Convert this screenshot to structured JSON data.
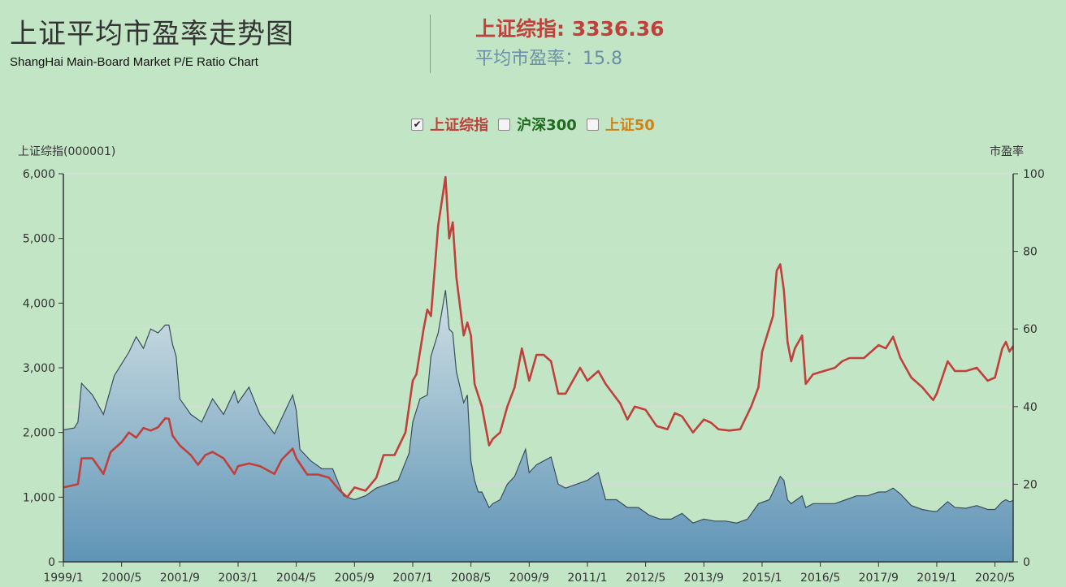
{
  "header": {
    "title": "上证平均市盈率走势图",
    "subtitle": "ShangHai Main-Board Market P/E Ratio Chart",
    "index_label": "上证综指: 3336.36",
    "pe_label": "平均市盈率：15.8"
  },
  "legend": {
    "items": [
      {
        "label": "上证综指",
        "checked": true,
        "color": "#c0403c"
      },
      {
        "label": "沪深300",
        "checked": false,
        "color": "#1f6b1f"
      },
      {
        "label": "上证50",
        "checked": false,
        "color": "#d08418"
      }
    ]
  },
  "colors": {
    "index_line": "#c0403c",
    "pe_area_top": "#d0e0e4",
    "pe_area_bottom": "#5f94b6",
    "pe_line": "#3a4e5a",
    "grid": "#d9d9d9"
  },
  "chart_data": {
    "type": "line",
    "yaxis_left_title": "上证综指(000001)",
    "yaxis_right_title": "市盈率",
    "y_left_range": [
      0,
      6000
    ],
    "y_right_range": [
      0,
      100
    ],
    "y_left_ticks": [
      "0",
      "1,000",
      "2,000",
      "3,000",
      "4,000",
      "5,000",
      "6,000"
    ],
    "y_right_ticks": [
      "0",
      "20",
      "40",
      "60",
      "80",
      "100"
    ],
    "x_range": [
      "1999/1",
      "2020/10"
    ],
    "x_ticks": [
      "1999/1",
      "2000/5",
      "2001/9",
      "2003/1",
      "2004/5",
      "2005/9",
      "2007/1",
      "2008/5",
      "2009/9",
      "2011/1",
      "2012/5",
      "2013/9",
      "2015/1",
      "2016/5",
      "2017/9",
      "2019/1",
      "2020/5"
    ],
    "series": [
      {
        "name": "上证综指",
        "axis": "left",
        "points": [
          [
            "1999/1",
            1150
          ],
          [
            "1999/5",
            1200
          ],
          [
            "1999/6",
            1600
          ],
          [
            "1999/9",
            1600
          ],
          [
            "1999/12",
            1360
          ],
          [
            "2000/2",
            1700
          ],
          [
            "2000/5",
            1850
          ],
          [
            "2000/7",
            2000
          ],
          [
            "2000/9",
            1920
          ],
          [
            "2000/11",
            2070
          ],
          [
            "2001/1",
            2030
          ],
          [
            "2001/3",
            2080
          ],
          [
            "2001/5",
            2220
          ],
          [
            "2001/6",
            2210
          ],
          [
            "2001/7",
            1950
          ],
          [
            "2001/9",
            1800
          ],
          [
            "2001/12",
            1650
          ],
          [
            "2002/2",
            1500
          ],
          [
            "2002/4",
            1650
          ],
          [
            "2002/6",
            1700
          ],
          [
            "2002/9",
            1600
          ],
          [
            "2002/12",
            1360
          ],
          [
            "2003/1",
            1480
          ],
          [
            "2003/4",
            1520
          ],
          [
            "2003/7",
            1480
          ],
          [
            "2003/11",
            1360
          ],
          [
            "2004/1",
            1580
          ],
          [
            "2004/4",
            1750
          ],
          [
            "2004/5",
            1600
          ],
          [
            "2004/8",
            1350
          ],
          [
            "2004/11",
            1350
          ],
          [
            "2005/2",
            1300
          ],
          [
            "2005/5",
            1100
          ],
          [
            "2005/7",
            1000
          ],
          [
            "2005/9",
            1150
          ],
          [
            "2005/12",
            1100
          ],
          [
            "2006/3",
            1300
          ],
          [
            "2006/5",
            1650
          ],
          [
            "2006/8",
            1650
          ],
          [
            "2006/11",
            2000
          ],
          [
            "2007/1",
            2800
          ],
          [
            "2007/2",
            2900
          ],
          [
            "2007/4",
            3600
          ],
          [
            "2007/5",
            3900
          ],
          [
            "2007/6",
            3800
          ],
          [
            "2007/8",
            5200
          ],
          [
            "2007/10",
            5950
          ],
          [
            "2007/11",
            5000
          ],
          [
            "2007/12",
            5250
          ],
          [
            "2008/1",
            4400
          ],
          [
            "2008/3",
            3500
          ],
          [
            "2008/4",
            3700
          ],
          [
            "2008/5",
            3500
          ],
          [
            "2008/6",
            2750
          ],
          [
            "2008/8",
            2400
          ],
          [
            "2008/10",
            1800
          ],
          [
            "2008/11",
            1900
          ],
          [
            "2009/1",
            2000
          ],
          [
            "2009/3",
            2400
          ],
          [
            "2009/5",
            2700
          ],
          [
            "2009/7",
            3300
          ],
          [
            "2009/9",
            2800
          ],
          [
            "2009/11",
            3200
          ],
          [
            "2010/1",
            3200
          ],
          [
            "2010/3",
            3100
          ],
          [
            "2010/5",
            2600
          ],
          [
            "2010/7",
            2600
          ],
          [
            "2010/10",
            2900
          ],
          [
            "2010/11",
            3000
          ],
          [
            "2011/1",
            2800
          ],
          [
            "2011/4",
            2950
          ],
          [
            "2011/6",
            2750
          ],
          [
            "2011/8",
            2600
          ],
          [
            "2011/10",
            2450
          ],
          [
            "2011/12",
            2200
          ],
          [
            "2012/2",
            2400
          ],
          [
            "2012/5",
            2350
          ],
          [
            "2012/8",
            2100
          ],
          [
            "2012/11",
            2050
          ],
          [
            "2013/1",
            2300
          ],
          [
            "2013/3",
            2250
          ],
          [
            "2013/6",
            2000
          ],
          [
            "2013/9",
            2200
          ],
          [
            "2013/11",
            2150
          ],
          [
            "2014/1",
            2050
          ],
          [
            "2014/4",
            2030
          ],
          [
            "2014/7",
            2050
          ],
          [
            "2014/10",
            2400
          ],
          [
            "2014/12",
            2700
          ],
          [
            "2015/1",
            3250
          ],
          [
            "2015/4",
            3800
          ],
          [
            "2015/5",
            4500
          ],
          [
            "2015/6",
            4600
          ],
          [
            "2015/7",
            4200
          ],
          [
            "2015/8",
            3400
          ],
          [
            "2015/9",
            3100
          ],
          [
            "2015/10",
            3300
          ],
          [
            "2015/12",
            3500
          ],
          [
            "2016/1",
            2750
          ],
          [
            "2016/3",
            2900
          ],
          [
            "2016/6",
            2950
          ],
          [
            "2016/9",
            3000
          ],
          [
            "2016/11",
            3100
          ],
          [
            "2017/1",
            3150
          ],
          [
            "2017/5",
            3150
          ],
          [
            "2017/9",
            3350
          ],
          [
            "2017/11",
            3300
          ],
          [
            "2018/1",
            3480
          ],
          [
            "2018/3",
            3150
          ],
          [
            "2018/6",
            2850
          ],
          [
            "2018/9",
            2700
          ],
          [
            "2018/12",
            2500
          ],
          [
            "2019/1",
            2600
          ],
          [
            "2019/4",
            3100
          ],
          [
            "2019/6",
            2950
          ],
          [
            "2019/9",
            2950
          ],
          [
            "2019/12",
            3000
          ],
          [
            "2020/3",
            2800
          ],
          [
            "2020/5",
            2850
          ],
          [
            "2020/7",
            3300
          ],
          [
            "2020/8",
            3400
          ],
          [
            "2020/9",
            3250
          ],
          [
            "2020/10",
            3336
          ]
        ]
      },
      {
        "name": "平均市盈率",
        "axis": "right",
        "points": [
          [
            "1999/1",
            34
          ],
          [
            "1999/4",
            34.5
          ],
          [
            "1999/5",
            36
          ],
          [
            "1999/6",
            46
          ],
          [
            "1999/9",
            43
          ],
          [
            "1999/12",
            38
          ],
          [
            "2000/3",
            48
          ],
          [
            "2000/5",
            51
          ],
          [
            "2000/7",
            54
          ],
          [
            "2000/9",
            58
          ],
          [
            "2000/11",
            55
          ],
          [
            "2001/1",
            60
          ],
          [
            "2001/3",
            59
          ],
          [
            "2001/5",
            61
          ],
          [
            "2001/6",
            61
          ],
          [
            "2001/7",
            56
          ],
          [
            "2001/8",
            53
          ],
          [
            "2001/9",
            42
          ],
          [
            "2001/12",
            38
          ],
          [
            "2002/3",
            36
          ],
          [
            "2002/6",
            42
          ],
          [
            "2002/9",
            38
          ],
          [
            "2002/12",
            44
          ],
          [
            "2003/1",
            41
          ],
          [
            "2003/4",
            45
          ],
          [
            "2003/7",
            38
          ],
          [
            "2003/11",
            33
          ],
          [
            "2004/1",
            37
          ],
          [
            "2004/4",
            43
          ],
          [
            "2004/5",
            39
          ],
          [
            "2004/6",
            29
          ],
          [
            "2004/9",
            26
          ],
          [
            "2004/12",
            24
          ],
          [
            "2005/3",
            24
          ],
          [
            "2005/6",
            17
          ],
          [
            "2005/9",
            16
          ],
          [
            "2005/12",
            17
          ],
          [
            "2006/3",
            19
          ],
          [
            "2006/6",
            20
          ],
          [
            "2006/9",
            21
          ],
          [
            "2006/12",
            28
          ],
          [
            "2007/1",
            36
          ],
          [
            "2007/3",
            42
          ],
          [
            "2007/5",
            43
          ],
          [
            "2007/6",
            53
          ],
          [
            "2007/8",
            59
          ],
          [
            "2007/10",
            70
          ],
          [
            "2007/11",
            60
          ],
          [
            "2007/12",
            59
          ],
          [
            "2008/1",
            49
          ],
          [
            "2008/3",
            41
          ],
          [
            "2008/4",
            43
          ],
          [
            "2008/5",
            26
          ],
          [
            "2008/6",
            21
          ],
          [
            "2008/7",
            18
          ],
          [
            "2008/8",
            18
          ],
          [
            "2008/10",
            14
          ],
          [
            "2008/11",
            15
          ],
          [
            "2009/1",
            16
          ],
          [
            "2009/3",
            20
          ],
          [
            "2009/5",
            22
          ],
          [
            "2009/8",
            29
          ],
          [
            "2009/9",
            23
          ],
          [
            "2009/11",
            25
          ],
          [
            "2010/1",
            26
          ],
          [
            "2010/3",
            27
          ],
          [
            "2010/5",
            20
          ],
          [
            "2010/7",
            19
          ],
          [
            "2010/10",
            20
          ],
          [
            "2011/1",
            21
          ],
          [
            "2011/4",
            23
          ],
          [
            "2011/6",
            16
          ],
          [
            "2011/9",
            16
          ],
          [
            "2011/12",
            14
          ],
          [
            "2012/3",
            14
          ],
          [
            "2012/6",
            12
          ],
          [
            "2012/9",
            11
          ],
          [
            "2012/12",
            11
          ],
          [
            "2013/3",
            12.5
          ],
          [
            "2013/6",
            10
          ],
          [
            "2013/9",
            11
          ],
          [
            "2013/12",
            10.5
          ],
          [
            "2014/3",
            10.5
          ],
          [
            "2014/6",
            10
          ],
          [
            "2014/9",
            11
          ],
          [
            "2014/12",
            15
          ],
          [
            "2015/3",
            16
          ],
          [
            "2015/5",
            20
          ],
          [
            "2015/6",
            22
          ],
          [
            "2015/7",
            21
          ],
          [
            "2015/8",
            16
          ],
          [
            "2015/9",
            15
          ],
          [
            "2015/12",
            17
          ],
          [
            "2016/1",
            14
          ],
          [
            "2016/3",
            15
          ],
          [
            "2016/6",
            15
          ],
          [
            "2016/9",
            15
          ],
          [
            "2016/12",
            16
          ],
          [
            "2017/3",
            17
          ],
          [
            "2017/6",
            17
          ],
          [
            "2017/9",
            18
          ],
          [
            "2017/11",
            18
          ],
          [
            "2018/1",
            19
          ],
          [
            "2018/3",
            17.5
          ],
          [
            "2018/6",
            14.5
          ],
          [
            "2018/9",
            13.5
          ],
          [
            "2018/12",
            13
          ],
          [
            "2019/1",
            13
          ],
          [
            "2019/4",
            15.5
          ],
          [
            "2019/6",
            14
          ],
          [
            "2019/9",
            13.8
          ],
          [
            "2019/12",
            14.5
          ],
          [
            "2020/3",
            13.5
          ],
          [
            "2020/5",
            13.5
          ],
          [
            "2020/7",
            15.5
          ],
          [
            "2020/8",
            16
          ],
          [
            "2020/9",
            15.5
          ],
          [
            "2020/10",
            15.8
          ]
        ]
      }
    ]
  }
}
